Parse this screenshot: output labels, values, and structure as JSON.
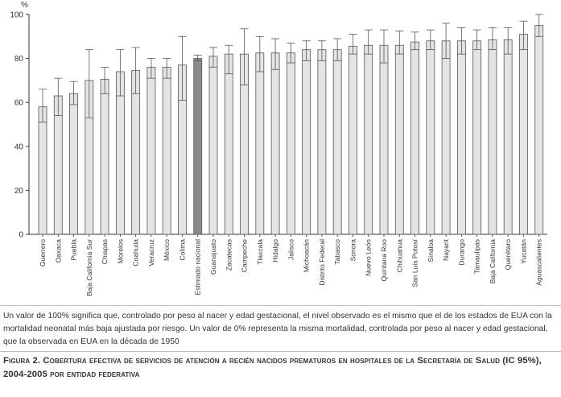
{
  "chart_data": {
    "type": "bar",
    "ylabel": "%",
    "ylim": [
      0,
      100
    ],
    "yticks": [
      0,
      20,
      40,
      60,
      80,
      100
    ],
    "grid": false,
    "bar_color": "#e4e4e4",
    "highlight_color": "#8a8a8a",
    "highlight_category": "Estimado nacional",
    "categories": [
      "Guerrero",
      "Oaxaca",
      "Puebla",
      "Baja California Sur",
      "Chiapas",
      "Morelos",
      "Coahuila",
      "Veracruz",
      "México",
      "Colima",
      "Estimado nacional",
      "Guanajuato",
      "Zacatecas",
      "Campeche",
      "Tlaxcala",
      "Hidalgo",
      "Jalisco",
      "Michoacán",
      "Distrito Federal",
      "Tabasco",
      "Sonora",
      "Nuevo León",
      "Quintana Roo",
      "Chihuahua",
      "San Luis Potosí",
      "Sinaloa",
      "Nayarit",
      "Durango",
      "Tamaulipas",
      "Baja California",
      "Querétaro",
      "Yucatán",
      "Aguascalientes"
    ],
    "values": [
      58,
      63,
      64,
      70,
      70.5,
      74,
      74.5,
      76,
      76,
      77,
      80,
      81,
      82,
      82,
      82.5,
      82.5,
      82.5,
      84,
      84,
      84,
      85.5,
      86,
      86,
      86,
      87.5,
      88,
      88,
      88,
      88,
      88.5,
      88.5,
      91,
      95
    ],
    "lower": [
      51,
      54,
      59,
      53,
      64,
      63,
      64,
      71,
      71,
      61,
      79,
      76,
      73,
      68,
      74,
      75,
      78,
      79,
      79,
      79,
      82,
      82,
      78,
      82,
      84,
      84,
      80,
      82,
      84,
      84,
      82,
      84,
      90
    ],
    "upper": [
      66,
      71,
      69.5,
      84,
      76,
      84,
      85,
      80,
      80,
      90,
      81.5,
      85,
      86,
      93.5,
      90,
      89,
      87,
      88,
      88,
      89,
      91,
      93,
      93,
      92.5,
      92,
      93,
      96,
      94,
      93,
      94,
      94,
      97,
      100
    ]
  },
  "note": "Un valor de 100% significa que, controlado por peso al nacer y edad gestacional, el nivel observado es el mismo que el de los estados de EUA con la mortalidad neonatal más baja ajustada por riesgo. Un valor de 0% representa la misma mortalidad, controlada por peso al nacer y edad gestacional, que la observada en EUA en la década de 1950",
  "caption": "Figura 2. Cobertura efectiva de servicios de atención a recién nacidos prematuros en hospitales de la Secretaría de Salud (IC 95%), 2004-2005 por entidad federativa"
}
